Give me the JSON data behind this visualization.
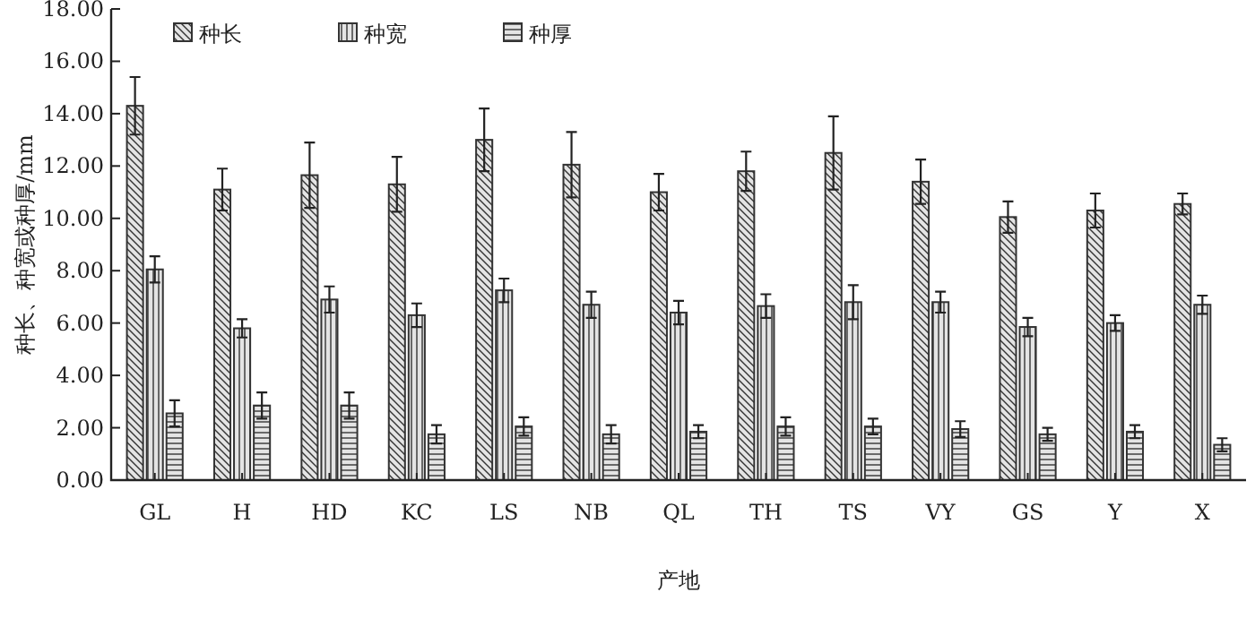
{
  "chart_data": {
    "type": "bar",
    "xlabel": "产地",
    "ylabel": "种长、种宽或种厚/mm",
    "categories": [
      "GL",
      "H",
      "HD",
      "KC",
      "LS",
      "NB",
      "QL",
      "TH",
      "TS",
      "VY",
      "GS",
      "Y",
      "X"
    ],
    "series": [
      {
        "name": "种长",
        "color": "#333333",
        "values": [
          14.3,
          11.1,
          11.65,
          11.3,
          13.0,
          12.05,
          11.0,
          11.8,
          12.5,
          11.4,
          10.05,
          10.3,
          10.55
        ],
        "errors": [
          1.1,
          0.8,
          1.25,
          1.05,
          1.2,
          1.25,
          0.7,
          0.75,
          1.4,
          0.85,
          0.6,
          0.65,
          0.4
        ]
      },
      {
        "name": "种宽",
        "color": "#333333",
        "values": [
          8.05,
          5.8,
          6.9,
          6.3,
          7.25,
          6.7,
          6.4,
          6.65,
          6.8,
          6.8,
          5.85,
          6.0,
          6.7
        ],
        "errors": [
          0.5,
          0.35,
          0.5,
          0.45,
          0.45,
          0.5,
          0.45,
          0.45,
          0.65,
          0.4,
          0.35,
          0.3,
          0.35
        ]
      },
      {
        "name": "种厚",
        "color": "#333333",
        "values": [
          2.55,
          2.85,
          2.85,
          1.75,
          2.05,
          1.75,
          1.85,
          2.05,
          2.05,
          1.95,
          1.75,
          1.85,
          1.35
        ],
        "errors": [
          0.5,
          0.5,
          0.5,
          0.35,
          0.35,
          0.35,
          0.25,
          0.35,
          0.3,
          0.3,
          0.25,
          0.25,
          0.25
        ]
      }
    ],
    "ylim": [
      0,
      18
    ],
    "yticks": [
      {
        "value": 0,
        "label": "0.00"
      },
      {
        "value": 2,
        "label": "2.00"
      },
      {
        "value": 4,
        "label": "4.00"
      },
      {
        "value": 6,
        "label": "6.00"
      },
      {
        "value": 8,
        "label": "8.00"
      },
      {
        "value": 10,
        "label": "10.00"
      },
      {
        "value": 12,
        "label": "12.00"
      },
      {
        "value": 14,
        "label": "14.00"
      },
      {
        "value": 16,
        "label": "16.00"
      },
      {
        "value": 18,
        "label": "18.00"
      }
    ],
    "legend": "top left",
    "grid": false
  }
}
